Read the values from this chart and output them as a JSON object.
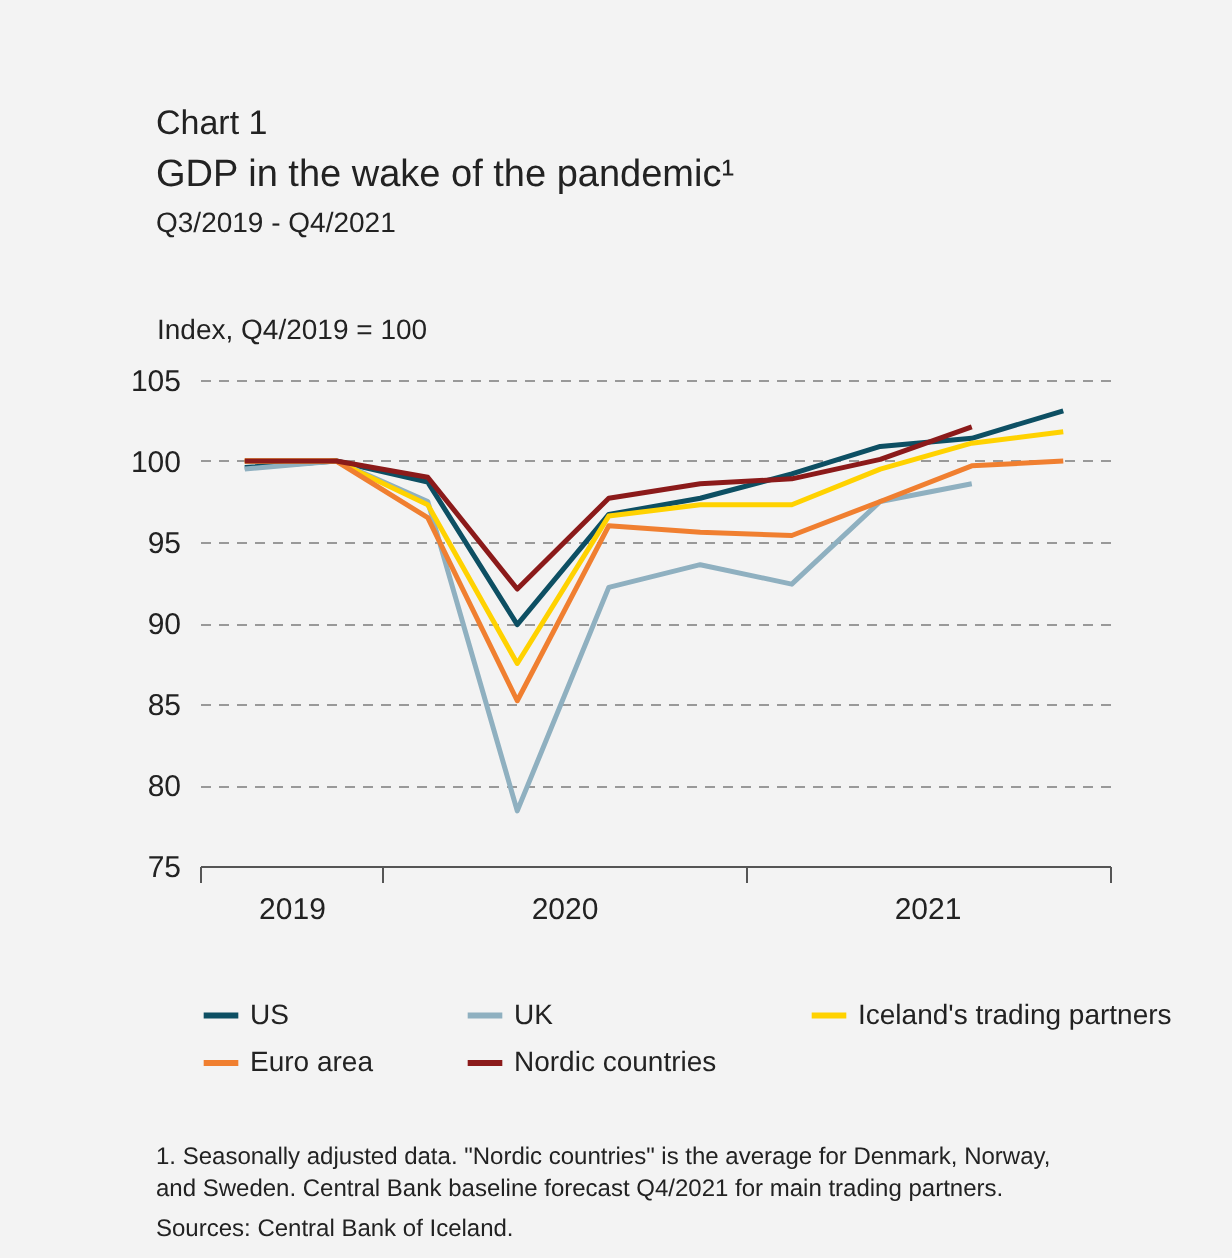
{
  "chart_data": {
    "type": "line",
    "title": "GDP in the wake of the pandemic¹",
    "subtitle": "Q3/2019 - Q4/2021",
    "ylabel": "Index, Q4/2019 = 100",
    "x": [
      "2019-08-15",
      "2019-11-15",
      "2020-02-15",
      "2020-05-15",
      "2020-08-15",
      "2020-11-15",
      "2021-02-15",
      "2021-05-15",
      "2021-08-15",
      "2021-11-15"
    ],
    "xlim": [
      "2019-07-01",
      "2022-01-01"
    ],
    "xticks": [
      {
        "value": "2019-07-01",
        "label": null
      },
      {
        "value": "2019-10-01",
        "label": "2019"
      },
      {
        "value": "2020-01-01",
        "label": null
      },
      {
        "value": "2020-07-01",
        "label": "2020"
      },
      {
        "value": "2021-01-01",
        "label": null
      },
      {
        "value": "2021-07-01",
        "label": "2021"
      },
      {
        "value": "2022-01-01",
        "label": null
      }
    ],
    "ylim": [
      75,
      105
    ],
    "yticks": [
      75,
      80,
      85,
      90,
      95,
      100,
      105
    ],
    "grid": "y",
    "legend": "bottom",
    "line_style": "solid",
    "marker": "none",
    "series": [
      {
        "name": "US",
        "color": "#0d4f63",
        "values": [
          99.6,
          100,
          98.7,
          89.9,
          96.7,
          97.7,
          99.2,
          100.9,
          101.4,
          103.1
        ]
      },
      {
        "name": "UK",
        "color": "#8fb0c0",
        "values": [
          99.5,
          100,
          97.5,
          78.4,
          92.2,
          93.6,
          92.4,
          97.5,
          98.6,
          null
        ]
      },
      {
        "name": "Iceland's trading partners",
        "color": "#ffd200",
        "values": [
          100,
          100,
          97.3,
          87.5,
          96.6,
          97.3,
          97.3,
          99.5,
          101.1,
          101.8
        ]
      },
      {
        "name": "Euro area",
        "color": "#f07f30",
        "values": [
          100,
          100,
          96.5,
          85.2,
          96.0,
          95.6,
          95.4,
          97.5,
          99.7,
          100.0
        ]
      },
      {
        "name": "Nordic countries",
        "color": "#8b1a1a",
        "values": [
          100,
          100,
          99.0,
          92.1,
          97.7,
          98.6,
          98.9,
          100.1,
          102.1,
          null
        ]
      }
    ],
    "annotations": [
      "Chart 1",
      "1. Seasonally adjusted data. \"Nordic countries\" is the average for Denmark, Norway, and Sweden. Central Bank baseline forecast Q4/2021 for main trading partners.",
      "Sources: Central Bank of Iceland."
    ]
  }
}
